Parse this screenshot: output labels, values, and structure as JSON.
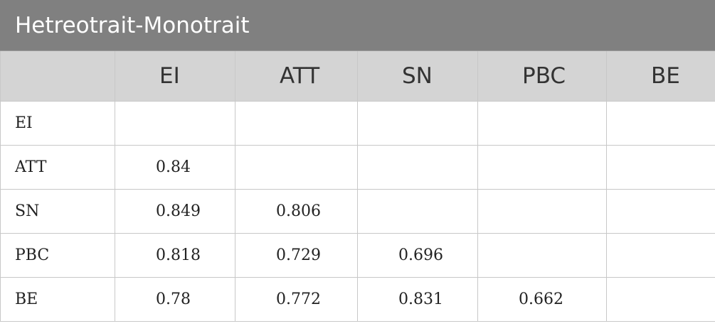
{
  "table": {
    "title": "Hetreotrait-Monotrait",
    "columns": [
      "EI",
      "ATT",
      "SN",
      "PBC",
      "BE"
    ],
    "rows": [
      {
        "label": "EI",
        "values": [
          "",
          "",
          "",
          "",
          ""
        ]
      },
      {
        "label": "ATT",
        "values": [
          "0.84",
          "",
          "",
          "",
          ""
        ]
      },
      {
        "label": "SN",
        "values": [
          "0.849",
          "0.806",
          "",
          "",
          ""
        ]
      },
      {
        "label": "PBC",
        "values": [
          "0.818",
          "0.729",
          "0.696",
          "",
          ""
        ]
      },
      {
        "label": "BE",
        "values": [
          "0.78",
          "0.772",
          "0.831",
          "0.662",
          ""
        ]
      }
    ]
  }
}
